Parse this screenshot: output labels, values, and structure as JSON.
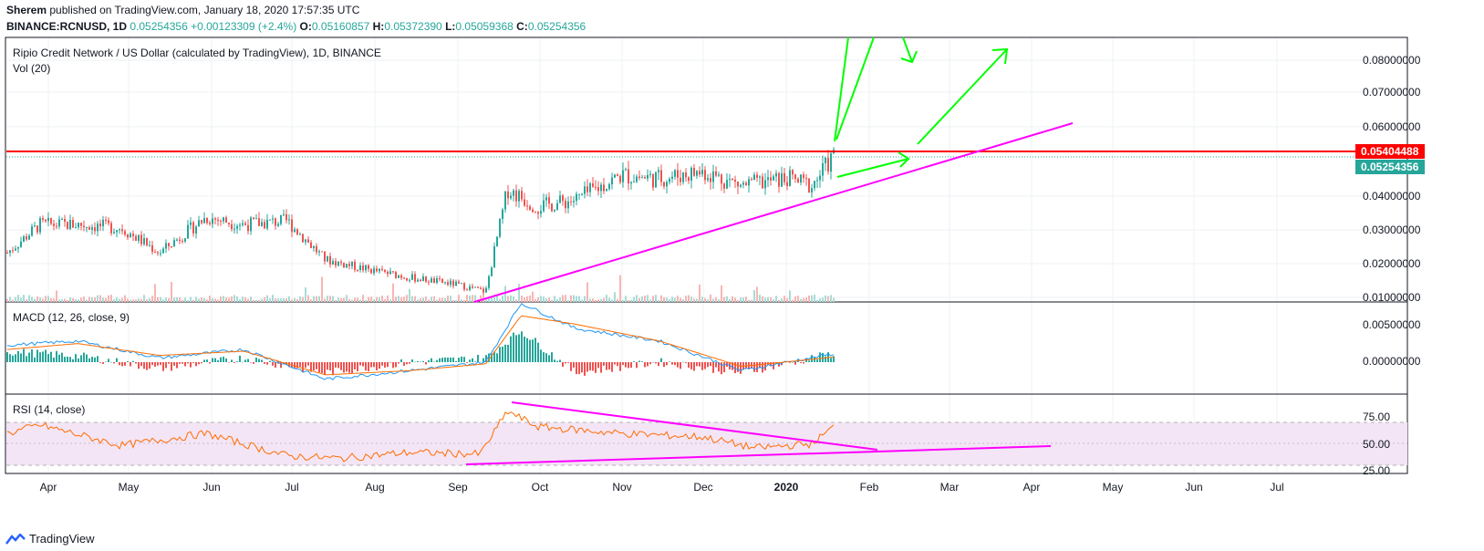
{
  "header": {
    "author": "Sherem",
    "published": "published on TradingView.com, January 18, 2020 17:57:35 UTC",
    "symbol": "BINANCE:RCNUSD, 1D",
    "price": "0.05254356",
    "change": "+0.00123309 (+2.4%)",
    "open_label": "O:",
    "open": "0.05160857",
    "high_label": "H:",
    "high": "0.05372390",
    "low_label": "L:",
    "low": "0.05059368",
    "close_label": "C:",
    "close": "0.05254356"
  },
  "main_pane": {
    "title": "Ripio Credit Network / US Dollar (calculated by TradingView), 1D, BINANCE",
    "vol_label": "Vol (20)",
    "yticks": [
      "0.08000000",
      "0.07000000",
      "0.06000000",
      "0.04000000",
      "0.03000000",
      "0.02000000",
      "0.01000000"
    ],
    "resistance_tag": "0.05404488",
    "last_tag": "0.05254356"
  },
  "macd_pane": {
    "title": "MACD (12, 26, close, 9)",
    "yticks": [
      "0.00500000",
      "0.00000000"
    ]
  },
  "rsi_pane": {
    "title": "RSI (14, close)",
    "yticks": [
      "75.00",
      "50.00",
      "25.00"
    ]
  },
  "xaxis": [
    "Apr",
    "May",
    "Jun",
    "Jul",
    "Aug",
    "Sep",
    "Oct",
    "Nov",
    "Dec",
    "2020",
    "Feb",
    "Mar",
    "Apr",
    "May",
    "Jun",
    "Jul"
  ],
  "footer": {
    "brand": "TradingView"
  },
  "colors": {
    "up": "#26a69a",
    "down": "#ef5350",
    "resistance": "#ff0000",
    "trend": "#ff00ff",
    "arrows": "#00ff00",
    "macd": "#2196f3",
    "signal": "#ff6d00",
    "rsi": "#ff6d00",
    "rsi_band": "#f3e5f5"
  },
  "chart_data": [
    {
      "type": "candlestick",
      "title": "Ripio Credit Network / US Dollar",
      "x": [
        "2019-03-20",
        "2019-04-01",
        "2019-04-15",
        "2019-05-01",
        "2019-05-15",
        "2019-06-01",
        "2019-06-15",
        "2019-07-01",
        "2019-07-15",
        "2019-08-01",
        "2019-08-15",
        "2019-09-01",
        "2019-09-12",
        "2019-09-20",
        "2019-10-01",
        "2019-10-15",
        "2019-11-01",
        "2019-11-15",
        "2019-12-01",
        "2019-12-15",
        "2020-01-01",
        "2020-01-10",
        "2020-01-18"
      ],
      "close": [
        0.025,
        0.033,
        0.033,
        0.032,
        0.025,
        0.035,
        0.033,
        0.034,
        0.023,
        0.02,
        0.018,
        0.016,
        0.014,
        0.043,
        0.038,
        0.04,
        0.047,
        0.046,
        0.048,
        0.044,
        0.046,
        0.044,
        0.0525
      ],
      "ylim": [
        0.01,
        0.085
      ],
      "resistance": 0.05404488,
      "last": 0.05254356
    },
    {
      "type": "line",
      "title": "MACD (12, 26, close, 9)",
      "x": [
        "2019-03-20",
        "2019-04-15",
        "2019-05-15",
        "2019-06-15",
        "2019-07-15",
        "2019-08-15",
        "2019-09-12",
        "2019-09-25",
        "2019-10-15",
        "2019-11-15",
        "2019-12-15",
        "2020-01-18"
      ],
      "series": [
        {
          "name": "MACD",
          "values": [
            0.002,
            0.0025,
            0.0005,
            0.0015,
            -0.002,
            -0.001,
            0.0,
            0.007,
            0.004,
            0.0025,
            -0.001,
            0.001
          ]
        },
        {
          "name": "Signal",
          "values": [
            0.0015,
            0.0022,
            0.0008,
            0.0013,
            -0.0015,
            -0.001,
            -0.0002,
            0.0055,
            0.0045,
            0.0025,
            -0.0005,
            0.0006
          ]
        }
      ],
      "ylim": [
        -0.004,
        0.008
      ]
    },
    {
      "type": "line",
      "title": "RSI (14, close)",
      "x": [
        "2019-03-20",
        "2019-04-01",
        "2019-05-01",
        "2019-06-01",
        "2019-07-01",
        "2019-07-20",
        "2019-08-15",
        "2019-09-10",
        "2019-09-20",
        "2019-10-01",
        "2019-11-01",
        "2019-12-01",
        "2019-12-20",
        "2020-01-10",
        "2020-01-18"
      ],
      "series": [
        {
          "name": "RSI",
          "values": [
            62,
            72,
            48,
            62,
            36,
            33,
            40,
            38,
            88,
            70,
            62,
            58,
            45,
            50,
            70
          ]
        }
      ],
      "ylim": [
        20,
        95
      ]
    }
  ]
}
